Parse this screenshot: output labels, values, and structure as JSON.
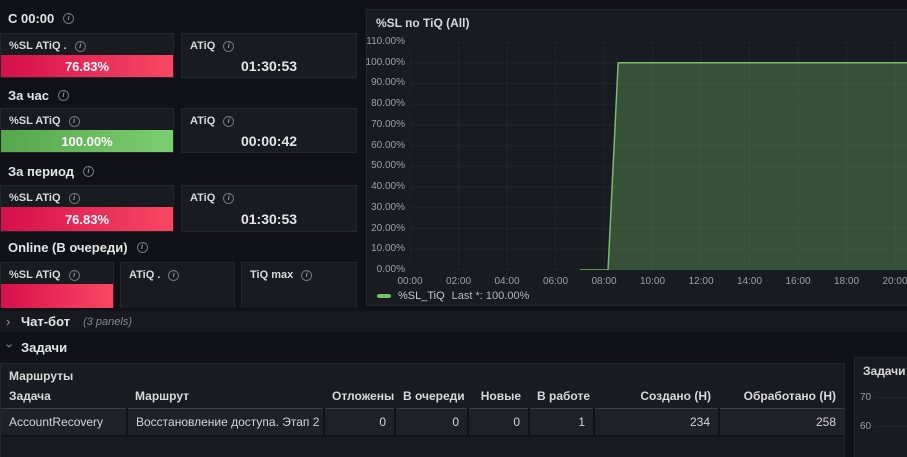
{
  "icons": {
    "info": "i",
    "chevron": "›"
  },
  "colors": {
    "page_bg": "#111217",
    "panel_bg": "#181b1f",
    "red_bar_start": "#d6104a",
    "red_bar_end": "#fa4763",
    "green_bar_start": "#56a64b",
    "green_bar_end": "#7ccf70",
    "series_green": "#73bf69"
  },
  "sections": {
    "from_midnight": {
      "label": "С 00:00"
    },
    "per_hour": {
      "label": "За час"
    },
    "per_period": {
      "label": "За период"
    },
    "online": {
      "label": "Online (В очереди)"
    }
  },
  "stats": {
    "sl_day": {
      "title": "%SL ATiQ .",
      "value": "76.83%"
    },
    "atiq_day": {
      "title": "ATiQ",
      "value": "01:30:53"
    },
    "sl_hour": {
      "title": "%SL ATiQ",
      "value": "100.00%"
    },
    "atiq_hour": {
      "title": "ATiQ",
      "value": "00:00:42"
    },
    "sl_period": {
      "title": "%SL ATiQ",
      "value": "76.83%"
    },
    "atiq_period": {
      "title": "ATiQ",
      "value": "01:30:53"
    },
    "sl_online": {
      "title": "%SL ATiQ",
      "value": ""
    },
    "atiq_online": {
      "title": "ATiQ .",
      "value": ""
    },
    "tiq_max_online": {
      "title": "TiQ max",
      "value": ""
    }
  },
  "chart_data": {
    "type": "area",
    "title": "%SL по TiQ (All)",
    "ylim": [
      0,
      110
    ],
    "grid": true,
    "yticks": [
      "0.00%",
      "10.00%",
      "20.00%",
      "30.00%",
      "40.00%",
      "50.00%",
      "60.00%",
      "70.00%",
      "80.00%",
      "90.00%",
      "100.00%",
      "110.00%"
    ],
    "xticks": [
      "00:00",
      "02:00",
      "04:00",
      "06:00",
      "08:00",
      "10:00",
      "12:00",
      "14:00",
      "16:00",
      "18:00",
      "20:00"
    ],
    "series": [
      {
        "name": "%SL_TiQ",
        "color": "#73bf69",
        "points": [
          [
            "07:00",
            0
          ],
          [
            "08:10",
            0
          ],
          [
            "08:35",
            100
          ],
          [
            "20:45",
            100
          ]
        ]
      }
    ],
    "legend": {
      "position": "bottom",
      "entries": [
        {
          "label": "%SL_TiQ",
          "calc": "Last *: 100.00%"
        }
      ]
    }
  },
  "rows": {
    "chatbot": {
      "label": "Чат-бот",
      "meta": "(3 panels)",
      "collapsed": true
    },
    "tasks": {
      "label": "Задачи",
      "collapsed": false
    }
  },
  "table": {
    "title": "Маршруты",
    "headers": [
      "Задача",
      "Маршрут",
      "Отложены",
      "В очереди",
      "Новые",
      "В работе",
      "Создано (Н)",
      "Обработано (Н)"
    ],
    "rows": [
      {
        "cells": [
          "AccountRecovery",
          "Восстановление доступа. Этап 2",
          "0",
          "0",
          "0",
          "1",
          "234",
          "258"
        ]
      }
    ]
  },
  "mini_chart": {
    "title": "Задачи (A",
    "yticks": [
      "70",
      "60"
    ]
  }
}
